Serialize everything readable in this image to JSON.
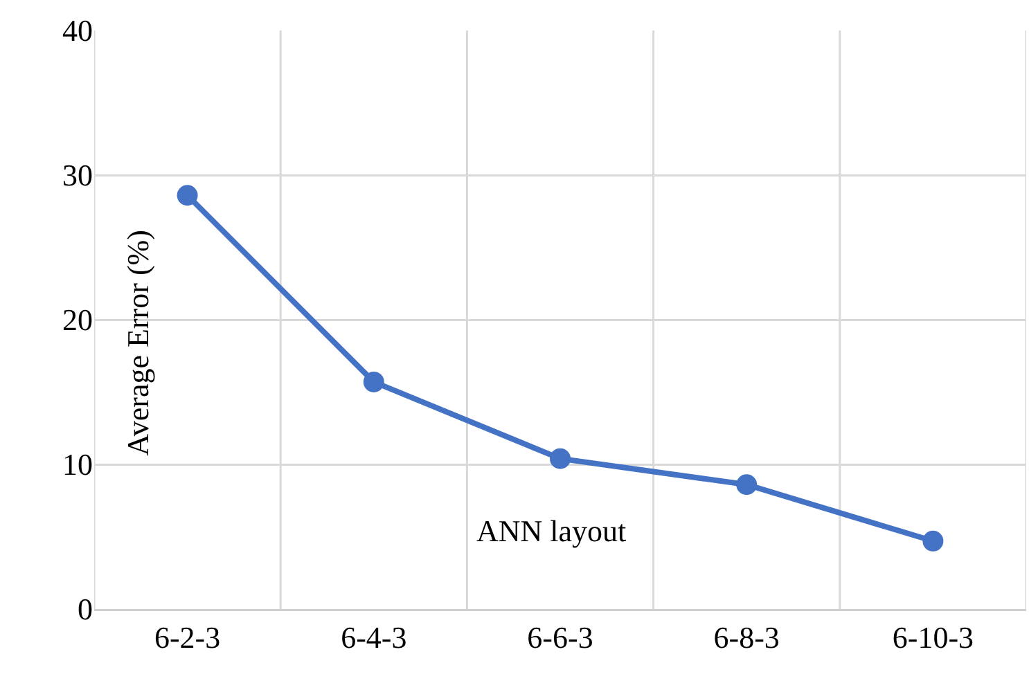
{
  "chart_data": {
    "type": "line",
    "xlabel": "ANN layout",
    "ylabel": "Average Error (%)",
    "categories": [
      "6-2-3",
      "6-4-3",
      "6-6-3",
      "6-8-3",
      "6-10-3"
    ],
    "series": [
      {
        "color": "#4472c4",
        "values": [
          28.6,
          15.7,
          10.4,
          8.6,
          4.7
        ]
      }
    ],
    "ylim": [
      0,
      40
    ],
    "yticks": [
      0,
      10,
      20,
      30,
      40
    ],
    "grid": true,
    "legend": false,
    "marker": "circle",
    "line_style": "solid"
  }
}
